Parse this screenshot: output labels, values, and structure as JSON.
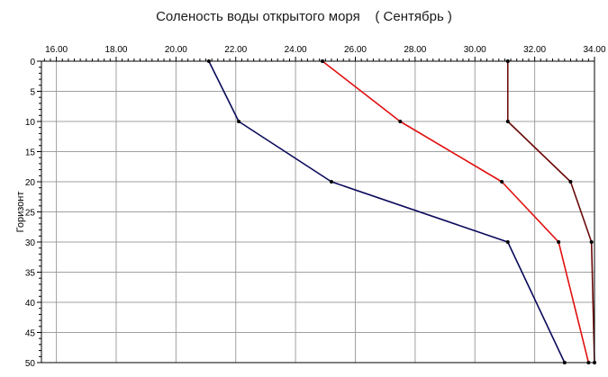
{
  "chart_data": {
    "type": "line",
    "title": "Соленость воды открытого моря    ( Сентябрь )",
    "xlabel": "",
    "ylabel": "Горизонт",
    "xlim": [
      15.5,
      34.0
    ],
    "ylim": [
      0,
      50
    ],
    "y_inverted": true,
    "x_axis_position": "top",
    "grid": true,
    "x_ticks": [
      "16.00",
      "18.00",
      "20.00",
      "22.00",
      "24.00",
      "26.00",
      "28.00",
      "30.00",
      "32.00",
      "34.00"
    ],
    "y_ticks": [
      "0",
      "5",
      "10",
      "15",
      "20",
      "25",
      "30",
      "35",
      "40",
      "45",
      "50"
    ],
    "depth": [
      0,
      10,
      20,
      30,
      50
    ],
    "series": [
      {
        "color": "#0a0a5c",
        "x": [
          21.1,
          22.1,
          25.2,
          31.1,
          33.0
        ]
      },
      {
        "color": "#e01010",
        "x": [
          24.9,
          27.5,
          30.9,
          32.8,
          33.8
        ]
      },
      {
        "color": "#6b0a0a",
        "x": [
          31.1,
          31.1,
          33.2,
          33.9,
          34.0
        ]
      }
    ]
  }
}
